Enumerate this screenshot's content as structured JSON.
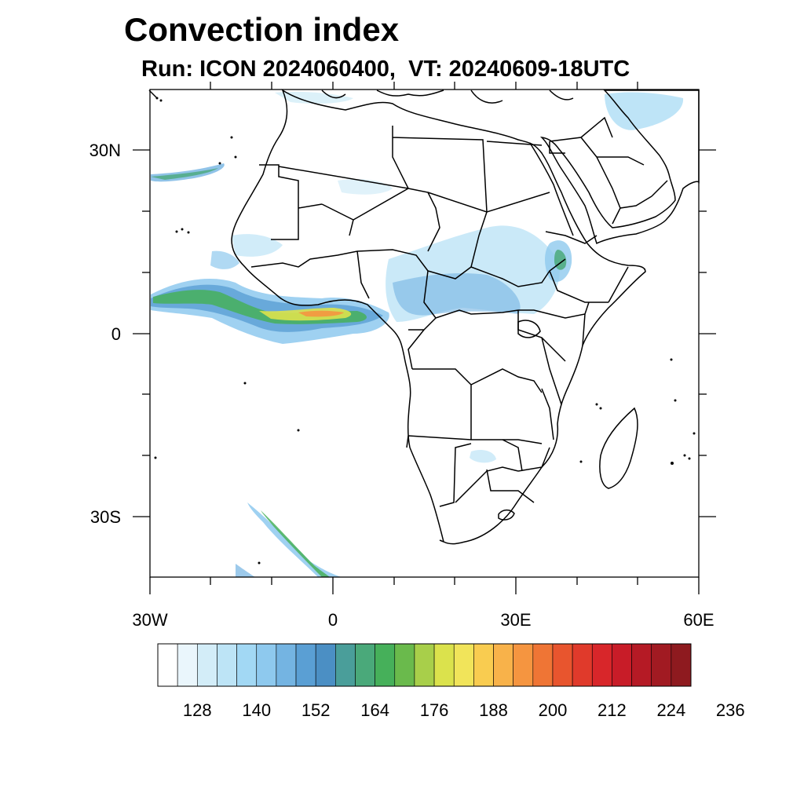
{
  "title": "Convection index",
  "subtitle": "Run: ICON 2024060400,  VT: 20240609-18UTC",
  "map": {
    "lon_range": [
      -30,
      60
    ],
    "lat_range": [
      -40,
      40
    ],
    "lon_ticks": [
      {
        "value": -30,
        "label": "30W"
      },
      {
        "value": 0,
        "label": "0"
      },
      {
        "value": 30,
        "label": "30E"
      },
      {
        "value": 60,
        "label": "60E"
      }
    ],
    "lat_ticks": [
      {
        "value": 30,
        "label": "30N"
      },
      {
        "value": 0,
        "label": "0"
      },
      {
        "value": -30,
        "label": "30S"
      }
    ]
  },
  "colorbar": {
    "colors": [
      "#ffffff",
      "#eaf6fc",
      "#d3edf8",
      "#bde4f6",
      "#a2d8f4",
      "#8ec9ee",
      "#74b4e2",
      "#5a9fd4",
      "#4b8fc4",
      "#4a9e9a",
      "#4aa97a",
      "#46b05a",
      "#6aba4c",
      "#a8cf4a",
      "#dbe24c",
      "#f1e45a",
      "#f9cc50",
      "#f8b24a",
      "#f59540",
      "#ef7535",
      "#e8552e",
      "#e03a2b",
      "#d8262a",
      "#c81c28",
      "#b51a25",
      "#a11a22",
      "#8e1a1f"
    ],
    "labels": [
      "128",
      "140",
      "152",
      "164",
      "176",
      "188",
      "200",
      "212",
      "224",
      "236"
    ]
  }
}
